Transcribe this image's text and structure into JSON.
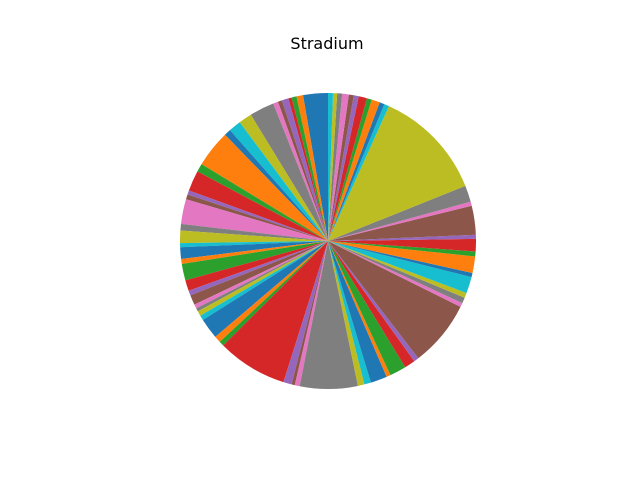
{
  "chart_data": {
    "type": "pie",
    "title": "Stradium",
    "palette": [
      "#1f77b4",
      "#ff7f0e",
      "#2ca02c",
      "#d62728",
      "#9467bd",
      "#8c564b",
      "#e377c2",
      "#7f7f7f",
      "#bcbd22",
      "#17becf"
    ],
    "values": [
      3.0,
      0.8,
      0.6,
      0.4,
      0.8,
      0.5,
      0.6,
      3.0,
      1.6,
      1.5,
      0.8,
      4.5,
      1.0,
      2.5,
      0.5,
      0.6,
      3.0,
      0.8,
      1.5,
      0.5,
      1.4,
      0.6,
      2.0,
      1.3,
      0.6,
      1.2,
      0.5,
      0.4,
      0.6,
      0.6,
      2.5,
      0.8,
      0.6,
      8.5,
      1.0,
      0.4,
      0.6,
      7.0,
      0.8,
      0.8,
      2.0,
      0.5,
      2.0,
      1.3,
      0.6,
      8.0,
      0.5,
      0.7,
      0.6,
      2.0,
      0.5,
      2.0,
      0.6,
      1.5,
      0.5,
      3.5,
      0.5,
      2.0,
      13.5,
      0.6,
      0.6,
      1.0,
      0.6,
      1.0,
      0.6,
      0.6,
      0.8,
      0.6,
      0.5,
      0.6
    ]
  }
}
